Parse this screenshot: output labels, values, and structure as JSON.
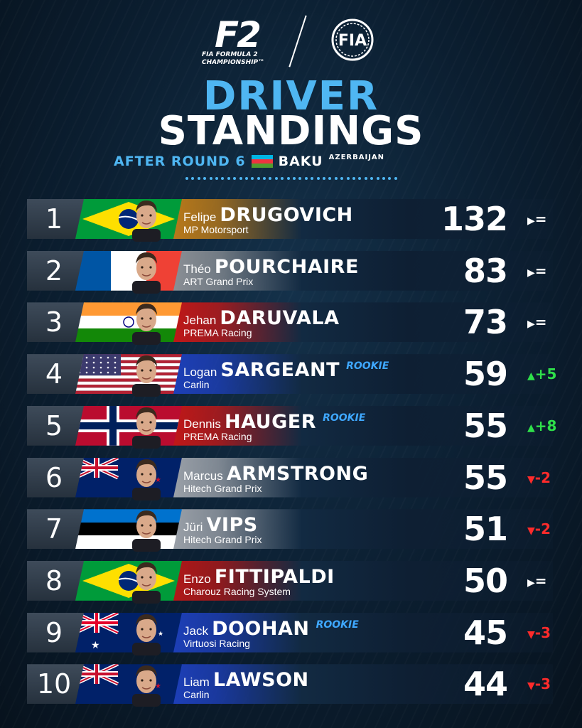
{
  "header": {
    "f2_logo_mark": "F2",
    "f2_logo_sub1": "FIA FORMULA 2",
    "f2_logo_sub2": "CHAMPIONSHIP™",
    "fia_logo_text": "FIA",
    "title_line1": "DRIVER",
    "title_line2": "STANDINGS",
    "round_text": "AFTER ROUND 6",
    "venue": "BAKU",
    "country": "AZERBAIJAN"
  },
  "colors": {
    "accent": "#4fb6f2",
    "up": "#2fe04a",
    "down": "#ff2b2b",
    "same": "#ffffff"
  },
  "standings": [
    {
      "position": "1",
      "first_name": "Felipe",
      "last_name": "DRUGOVICH",
      "rookie": "",
      "team": "MP Motorsport",
      "points": "132",
      "change": "=",
      "trend": "same",
      "flag": "brazil",
      "bg": "#b8791a"
    },
    {
      "position": "2",
      "first_name": "Théo",
      "last_name": "POURCHAIRE",
      "rookie": "",
      "team": "ART Grand Prix",
      "points": "83",
      "change": "=",
      "trend": "same",
      "flag": "france",
      "bg": "#8a8f95"
    },
    {
      "position": "3",
      "first_name": "Jehan",
      "last_name": "DARUVALA",
      "rookie": "",
      "team": "PREMA Racing",
      "points": "73",
      "change": "=",
      "trend": "same",
      "flag": "india",
      "bg": "#c01818"
    },
    {
      "position": "4",
      "first_name": "Logan",
      "last_name": "SARGEANT",
      "rookie": "ROOKIE",
      "team": "Carlin",
      "points": "59",
      "change": "+5",
      "trend": "up",
      "flag": "usa",
      "bg": "#1d3fb8"
    },
    {
      "position": "5",
      "first_name": "Dennis",
      "last_name": "HAUGER",
      "rookie": "ROOKIE",
      "team": "PREMA Racing",
      "points": "55",
      "change": "+8",
      "trend": "up",
      "flag": "norway",
      "bg": "#c01818"
    },
    {
      "position": "6",
      "first_name": "Marcus",
      "last_name": "ARMSTRONG",
      "rookie": "",
      "team": "Hitech Grand Prix",
      "points": "55",
      "change": "-2",
      "trend": "down",
      "flag": "newzealand",
      "bg": "#9aa0a8"
    },
    {
      "position": "7",
      "first_name": "Jüri",
      "last_name": "VIPS",
      "rookie": "",
      "team": "Hitech Grand Prix",
      "points": "51",
      "change": "-2",
      "trend": "down",
      "flag": "estonia",
      "bg": "#9aa0a8"
    },
    {
      "position": "8",
      "first_name": "Enzo",
      "last_name": "FITTIPALDI",
      "rookie": "",
      "team": "Charouz Racing System",
      "points": "50",
      "change": "=",
      "trend": "same",
      "flag": "brazil",
      "bg": "#b01818"
    },
    {
      "position": "9",
      "first_name": "Jack",
      "last_name": "DOOHAN",
      "rookie": "ROOKIE",
      "team": "Virtuosi Racing",
      "points": "45",
      "change": "-3",
      "trend": "down",
      "flag": "australia",
      "bg": "#1d3fb8"
    },
    {
      "position": "10",
      "first_name": "Liam",
      "last_name": "LAWSON",
      "rookie": "",
      "team": "Carlin",
      "points": "44",
      "change": "-3",
      "trend": "down",
      "flag": "newzealand",
      "bg": "#1d3fb8"
    }
  ]
}
